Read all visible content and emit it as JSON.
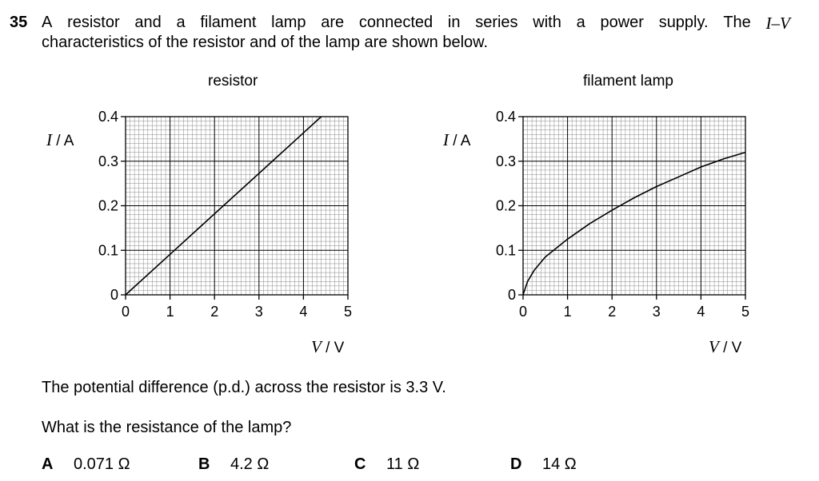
{
  "question": {
    "number": "35",
    "words_line1": [
      "A",
      "resistor",
      "and",
      "a",
      "filament",
      "lamp",
      "are",
      "connected",
      "in",
      "series",
      "with",
      "a",
      "power",
      "supply.",
      "The"
    ],
    "iv_label": "I–V",
    "line2": "characteristics of the resistor and of the lamp are shown below.",
    "statement": "The potential difference (p.d.) across the resistor is 3.3 V.",
    "prompt": "What is the resistance of the lamp?"
  },
  "axis_text": {
    "I_symbol": "I",
    "I_unit": " / A",
    "V_symbol": "V",
    "V_unit": " / V"
  },
  "chart_data": [
    {
      "type": "line",
      "title": "resistor",
      "xlabel": "V / V",
      "ylabel": "I / A",
      "xlim": [
        0,
        5
      ],
      "ylim": [
        0,
        0.4
      ],
      "grid": true,
      "x_ticks": [
        "0",
        "1",
        "2",
        "3",
        "4",
        "5"
      ],
      "y_ticks": [
        "0",
        "0.1",
        "0.2",
        "0.3",
        "0.4"
      ],
      "x": [
        0,
        1,
        2,
        3,
        4,
        4.4
      ],
      "y": [
        0,
        0.0909,
        0.1818,
        0.2727,
        0.3636,
        0.4
      ]
    },
    {
      "type": "line",
      "title": "filament lamp",
      "xlabel": "V / V",
      "ylabel": "I / A",
      "xlim": [
        0,
        5
      ],
      "ylim": [
        0,
        0.4
      ],
      "grid": true,
      "x_ticks": [
        "0",
        "1",
        "2",
        "3",
        "4",
        "5"
      ],
      "y_ticks": [
        "0",
        "0.1",
        "0.2",
        "0.3",
        "0.4"
      ],
      "x": [
        0,
        0.1,
        0.25,
        0.5,
        1,
        1.5,
        2,
        2.5,
        3,
        3.5,
        4,
        4.5,
        5
      ],
      "y": [
        0,
        0.03,
        0.055,
        0.085,
        0.125,
        0.16,
        0.19,
        0.218,
        0.243,
        0.265,
        0.287,
        0.305,
        0.32
      ]
    }
  ],
  "options": [
    {
      "letter": "A",
      "value": "0.071 Ω"
    },
    {
      "letter": "B",
      "value": "4.2 Ω"
    },
    {
      "letter": "C",
      "value": "11 Ω"
    },
    {
      "letter": "D",
      "value": "14 Ω"
    }
  ]
}
